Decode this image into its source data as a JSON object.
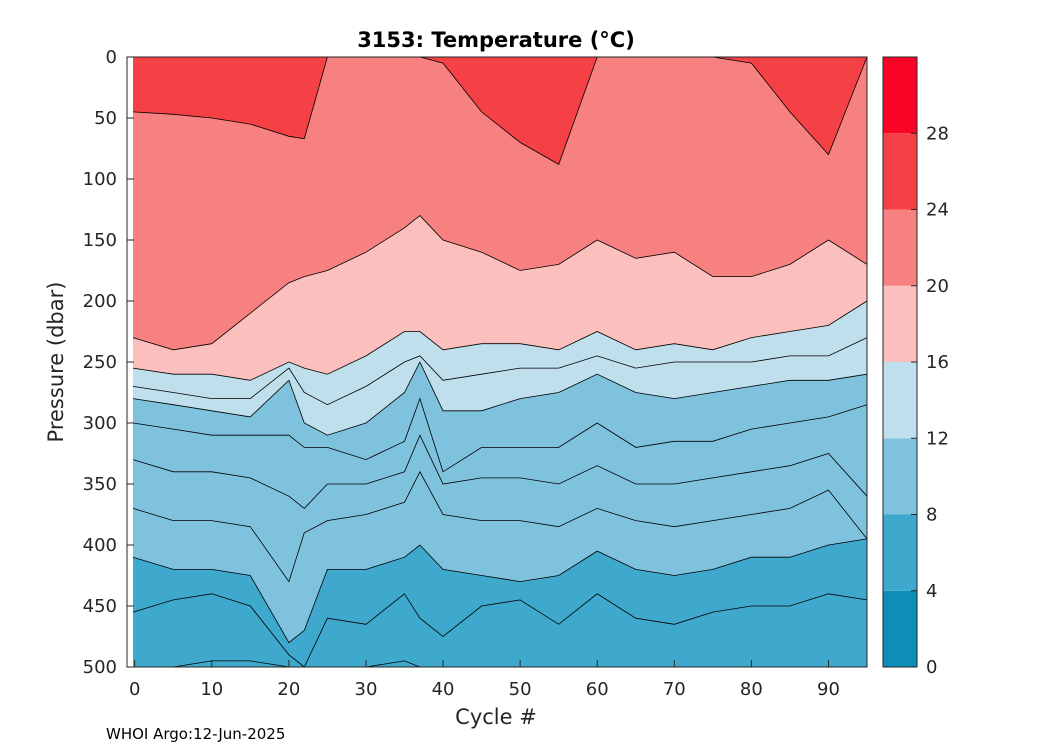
{
  "credit": "WHOI Argo:12-Jun-2025",
  "chart_data": {
    "type": "contourf",
    "title": "3153:  Temperature (°C)",
    "xlabel": "Cycle #",
    "ylabel": "Pressure (dbar)",
    "xlim": [
      -1,
      95
    ],
    "ylim": [
      0,
      500
    ],
    "y_reversed": true,
    "x_ticks": [
      "0",
      "10",
      "20",
      "30",
      "40",
      "50",
      "60",
      "70",
      "80",
      "90"
    ],
    "y_ticks": [
      "0",
      "50",
      "100",
      "150",
      "200",
      "250",
      "300",
      "350",
      "400",
      "450",
      "500"
    ],
    "colorbar": {
      "range": [
        0,
        32
      ],
      "tick_labels": [
        "0",
        "4",
        "8",
        "12",
        "16",
        "20",
        "24",
        "28"
      ],
      "band_edges": [
        0,
        4,
        8,
        12,
        16,
        20,
        24,
        28,
        32
      ],
      "band_colors": [
        "#0c8eb9",
        "#3ea9cd",
        "#7fc2dd",
        "#bedfeb",
        "#fbbfbd",
        "#f78180",
        "#f54045",
        "#f90426"
      ]
    },
    "cycles": [
      0,
      5,
      10,
      15,
      20,
      22,
      25,
      30,
      35,
      37,
      40,
      45,
      50,
      55,
      60,
      65,
      70,
      75,
      80,
      85,
      90,
      95
    ],
    "isotherms": [
      {
        "level": 24,
        "depth": [
          45,
          47,
          50,
          55,
          65,
          67,
          0,
          0,
          0,
          0,
          5,
          45,
          70,
          88,
          0,
          0,
          0,
          0,
          5,
          45,
          80,
          0
        ]
      },
      {
        "level": 20,
        "depth": [
          230,
          240,
          235,
          210,
          185,
          180,
          175,
          160,
          140,
          130,
          150,
          160,
          175,
          170,
          150,
          165,
          160,
          180,
          180,
          170,
          150,
          170
        ]
      },
      {
        "level": 16,
        "depth": [
          255,
          260,
          260,
          265,
          250,
          255,
          260,
          245,
          225,
          225,
          240,
          235,
          235,
          240,
          225,
          240,
          235,
          240,
          230,
          225,
          220,
          200
        ]
      },
      {
        "level": 14,
        "depth": [
          270,
          275,
          280,
          280,
          255,
          275,
          285,
          270,
          250,
          245,
          265,
          260,
          255,
          255,
          245,
          255,
          250,
          250,
          250,
          245,
          245,
          230
        ]
      },
      {
        "level": 12,
        "depth": [
          280,
          285,
          290,
          295,
          265,
          300,
          310,
          300,
          275,
          250,
          290,
          290,
          280,
          275,
          260,
          275,
          280,
          275,
          270,
          265,
          265,
          260
        ]
      },
      {
        "level": 11,
        "depth": [
          300,
          305,
          310,
          310,
          310,
          320,
          320,
          330,
          315,
          280,
          340,
          320,
          320,
          320,
          300,
          320,
          315,
          315,
          305,
          300,
          295,
          285
        ]
      },
      {
        "level": 10,
        "depth": [
          330,
          340,
          340,
          345,
          360,
          370,
          350,
          350,
          340,
          310,
          350,
          345,
          345,
          350,
          335,
          350,
          350,
          345,
          340,
          335,
          325,
          360
        ]
      },
      {
        "level": 9,
        "depth": [
          370,
          380,
          380,
          385,
          430,
          390,
          380,
          375,
          365,
          340,
          375,
          380,
          380,
          385,
          370,
          380,
          385,
          380,
          375,
          370,
          355,
          395
        ]
      },
      {
        "level": 8,
        "depth": [
          410,
          420,
          420,
          425,
          480,
          470,
          420,
          420,
          410,
          400,
          420,
          425,
          430,
          425,
          405,
          420,
          425,
          420,
          410,
          410,
          400,
          395
        ]
      },
      {
        "level": 7,
        "depth": [
          455,
          445,
          440,
          450,
          490,
          500,
          460,
          465,
          440,
          460,
          475,
          450,
          445,
          465,
          440,
          460,
          465,
          455,
          450,
          450,
          440,
          445
        ]
      },
      {
        "level": 6,
        "depth": [
          500,
          500,
          495,
          495,
          500,
          500,
          500,
          500,
          495,
          500,
          500,
          500,
          500,
          500,
          500,
          500,
          500,
          500,
          500,
          500,
          500,
          500
        ]
      }
    ]
  }
}
